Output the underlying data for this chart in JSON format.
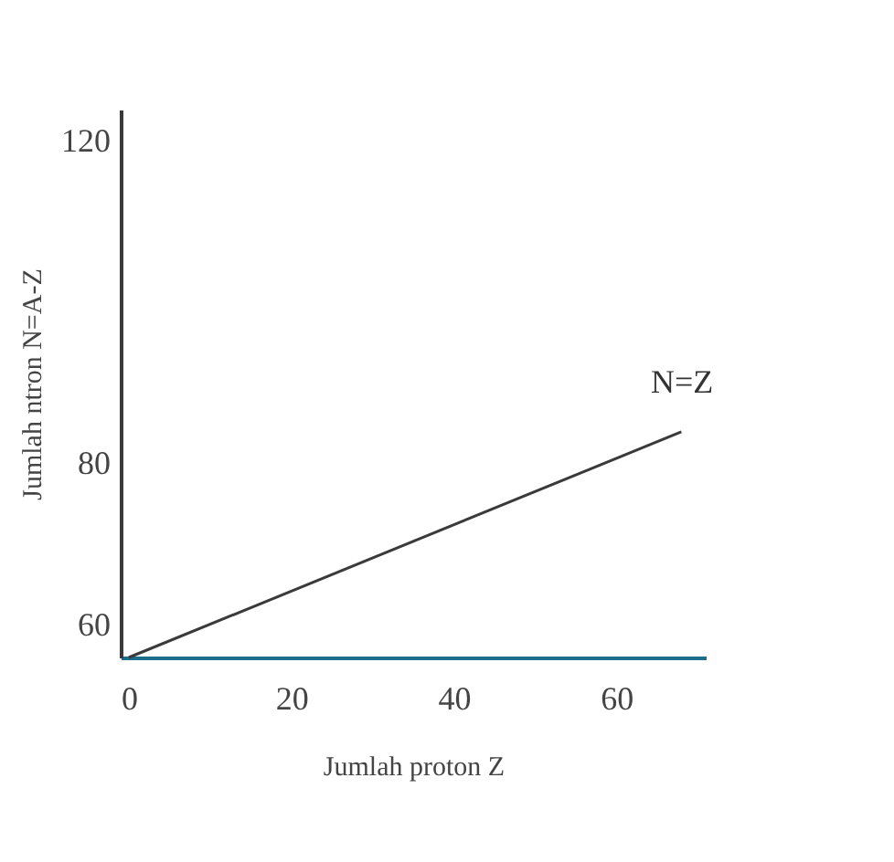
{
  "chart_data": {
    "type": "line",
    "xlabel": "Jumlah proton Z",
    "ylabel": "Jumlah ntron  N=A-Z",
    "x": [
      0,
      68
    ],
    "series": [
      {
        "color": "#3a3a3a",
        "values": [
          56,
          84
        ]
      }
    ],
    "xlim": [
      -1,
      71
    ],
    "xticks": [
      0,
      20,
      40,
      60
    ],
    "ylim": [
      56,
      124
    ],
    "yticks": [
      60,
      80,
      120
    ],
    "annotations": [
      "N=Z"
    ],
    "grid": false,
    "marker": "none",
    "line_style": "solid"
  }
}
